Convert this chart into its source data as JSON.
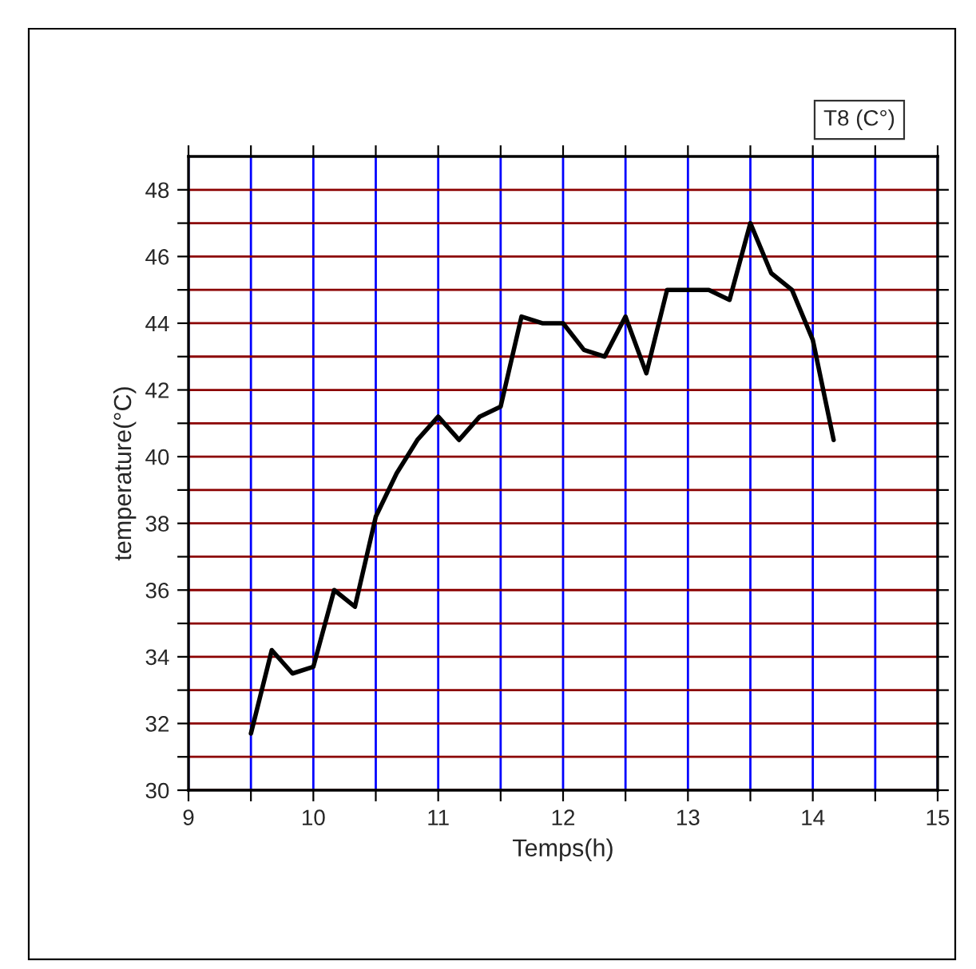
{
  "chart_data": {
    "type": "line",
    "xlabel": "Temps(h)",
    "ylabel": "temperature(°C)",
    "xlim": [
      9,
      15
    ],
    "ylim": [
      30,
      49
    ],
    "xticks": [
      9,
      {
        "value": 9.5,
        "label": null
      },
      10,
      {
        "value": 10.5,
        "label": null
      },
      11,
      {
        "value": 11.5,
        "label": null
      },
      12,
      {
        "value": 12.5,
        "label": null
      },
      13,
      {
        "value": 13.5,
        "label": null
      },
      14,
      {
        "value": 14.5,
        "label": null
      },
      15
    ],
    "yticks": [
      30,
      {
        "value": 31,
        "label": null
      },
      32,
      {
        "value": 33,
        "label": null
      },
      34,
      {
        "value": 35,
        "label": null
      },
      36,
      {
        "value": 37,
        "label": null
      },
      38,
      {
        "value": 39,
        "label": null
      },
      40,
      {
        "value": 41,
        "label": null
      },
      42,
      {
        "value": 43,
        "label": null
      },
      44,
      {
        "value": 45,
        "label": null
      },
      46,
      {
        "value": 47,
        "label": null
      },
      48
    ],
    "grid": true,
    "legend": "top right",
    "marker": "none",
    "line_style": "solid",
    "series": [
      {
        "name": "T8 (C°)",
        "color": "#000000",
        "x": [
          9.5,
          9.667,
          9.833,
          10,
          10.167,
          10.333,
          10.5,
          10.667,
          10.833,
          11,
          11.167,
          11.333,
          11.5,
          11.667,
          11.833,
          12,
          12.167,
          12.333,
          12.5,
          12.667,
          12.833,
          13,
          13.167,
          13.333,
          13.5,
          13.667,
          13.833,
          14,
          14.167
        ],
        "values": [
          31.7,
          34.2,
          33.5,
          33.7,
          36,
          35.5,
          38.2,
          39.5,
          40.5,
          41.2,
          40.5,
          41.2,
          41.5,
          44.2,
          44,
          44,
          43.2,
          43,
          44.2,
          42.5,
          45,
          45,
          45,
          44.7,
          47,
          45.5,
          45,
          43.5,
          40.5
        ]
      }
    ]
  }
}
